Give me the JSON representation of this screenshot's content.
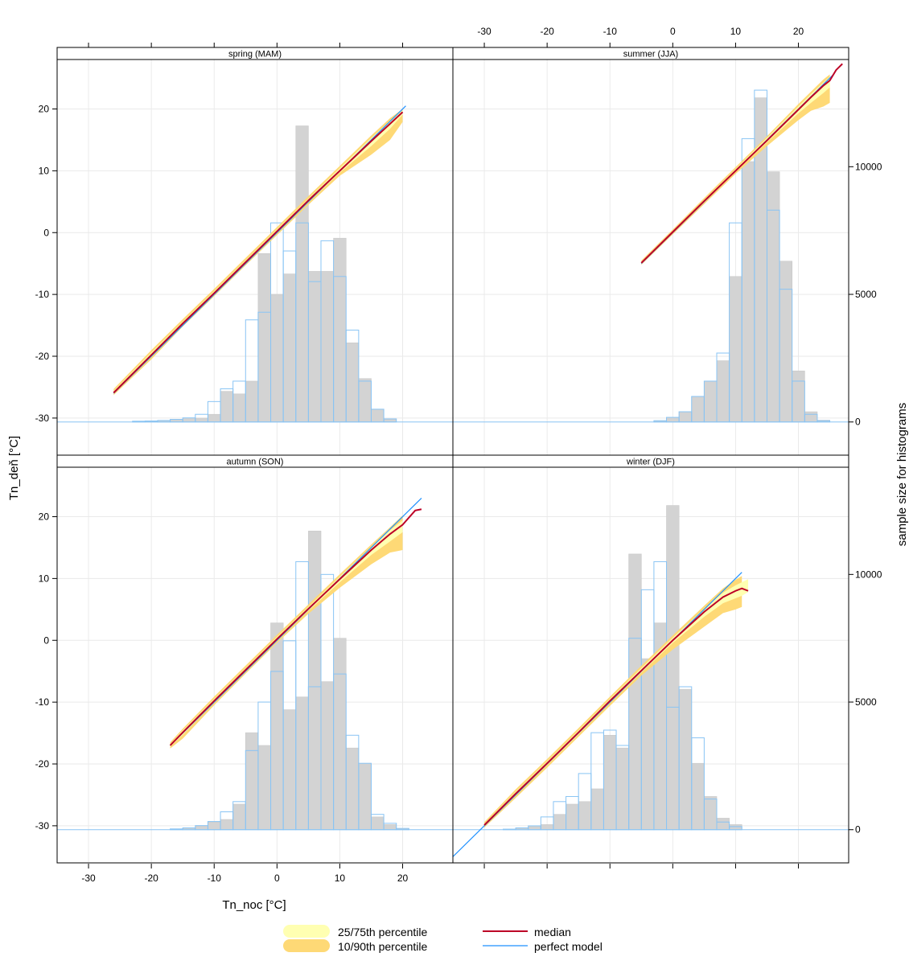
{
  "chart_data": {
    "type": "conditional-quantile",
    "xlabel": "Tn_noc [°C]",
    "ylabel": "Tn_deň [°C]",
    "y2label": "sample size for histograms",
    "xlim": [
      -35,
      28
    ],
    "ylim": [
      -36,
      28
    ],
    "countLim": [
      -1300,
      14200
    ],
    "xticks": [
      -30,
      -20,
      -10,
      0,
      10,
      20
    ],
    "yticks": [
      -30,
      -20,
      -10,
      0,
      10,
      20
    ],
    "countTicks": [
      0,
      5000,
      10000
    ],
    "binWidth": 2,
    "panels": [
      {
        "title": "spring (MAM)",
        "histObs": [
          {
            "x": -22,
            "n": 30
          },
          {
            "x": -20,
            "n": 40
          },
          {
            "x": -18,
            "n": 60
          },
          {
            "x": -16,
            "n": 100
          },
          {
            "x": -14,
            "n": 130
          },
          {
            "x": -12,
            "n": 150
          },
          {
            "x": -10,
            "n": 300
          },
          {
            "x": -8,
            "n": 1200
          },
          {
            "x": -6,
            "n": 1100
          },
          {
            "x": -4,
            "n": 1600
          },
          {
            "x": -2,
            "n": 6600
          },
          {
            "x": 0,
            "n": 5000
          },
          {
            "x": 2,
            "n": 5800
          },
          {
            "x": 4,
            "n": 11600
          },
          {
            "x": 6,
            "n": 5900
          },
          {
            "x": 8,
            "n": 5900
          },
          {
            "x": 10,
            "n": 7200
          },
          {
            "x": 12,
            "n": 3100
          },
          {
            "x": 14,
            "n": 1700
          },
          {
            "x": 16,
            "n": 500
          },
          {
            "x": 18,
            "n": 100
          }
        ],
        "histModel": [
          {
            "x": -22,
            "n": 30
          },
          {
            "x": -20,
            "n": 40
          },
          {
            "x": -18,
            "n": 60
          },
          {
            "x": -16,
            "n": 100
          },
          {
            "x": -14,
            "n": 160
          },
          {
            "x": -12,
            "n": 300
          },
          {
            "x": -10,
            "n": 800
          },
          {
            "x": -8,
            "n": 1300
          },
          {
            "x": -6,
            "n": 1600
          },
          {
            "x": -4,
            "n": 4000
          },
          {
            "x": -2,
            "n": 4300
          },
          {
            "x": 0,
            "n": 7800
          },
          {
            "x": 2,
            "n": 6700
          },
          {
            "x": 4,
            "n": 7800
          },
          {
            "x": 6,
            "n": 5500
          },
          {
            "x": 8,
            "n": 7100
          },
          {
            "x": 10,
            "n": 5700
          },
          {
            "x": 12,
            "n": 3600
          },
          {
            "x": 14,
            "n": 1600
          },
          {
            "x": 16,
            "n": 500
          },
          {
            "x": 18,
            "n": 120
          }
        ],
        "quantiles": [
          {
            "x": -26,
            "q10": -26.3,
            "q25": -26.0,
            "q50": -25.9,
            "q75": -25.6,
            "q90": -25.3
          },
          {
            "x": -20,
            "q10": -20.5,
            "q25": -20.1,
            "q50": -19.8,
            "q75": -19.4,
            "q90": -19.0
          },
          {
            "x": -15,
            "q10": -15.2,
            "q25": -14.9,
            "q50": -14.7,
            "q75": -14.4,
            "q90": -14.0
          },
          {
            "x": -10,
            "q10": -10.3,
            "q25": -9.9,
            "q50": -9.8,
            "q75": -9.5,
            "q90": -9.1
          },
          {
            "x": -5,
            "q10": -5.3,
            "q25": -4.9,
            "q50": -4.8,
            "q75": -4.5,
            "q90": -4.1
          },
          {
            "x": 0,
            "q10": -0.4,
            "q25": 0.0,
            "q50": 0.2,
            "q75": 0.5,
            "q90": 0.9
          },
          {
            "x": 5,
            "q10": 4.5,
            "q25": 4.9,
            "q50": 5.2,
            "q75": 5.5,
            "q90": 5.9
          },
          {
            "x": 10,
            "q10": 9.2,
            "q25": 9.7,
            "q50": 10.0,
            "q75": 10.4,
            "q90": 10.8
          },
          {
            "x": 15,
            "q10": 12.6,
            "q25": 14.0,
            "q50": 14.8,
            "q75": 15.3,
            "q90": 15.7
          },
          {
            "x": 18,
            "q10": 15.0,
            "q25": 16.8,
            "q50": 17.6,
            "q75": 18.1,
            "q90": 18.5
          },
          {
            "x": 20,
            "q10": 17.9,
            "q25": 19.1,
            "q50": 19.5,
            "q75": 19.8,
            "q90": 20.0
          }
        ],
        "perfect": [
          -26.0,
          20.5
        ]
      },
      {
        "title": "summer (JJA)",
        "histObs": [
          {
            "x": -2,
            "n": 50
          },
          {
            "x": 0,
            "n": 180
          },
          {
            "x": 2,
            "n": 400
          },
          {
            "x": 4,
            "n": 1000
          },
          {
            "x": 6,
            "n": 1600
          },
          {
            "x": 8,
            "n": 2400
          },
          {
            "x": 10,
            "n": 5700
          },
          {
            "x": 12,
            "n": 10200
          },
          {
            "x": 14,
            "n": 12700
          },
          {
            "x": 16,
            "n": 9800
          },
          {
            "x": 18,
            "n": 6300
          },
          {
            "x": 20,
            "n": 2000
          },
          {
            "x": 22,
            "n": 400
          },
          {
            "x": 24,
            "n": 70
          }
        ],
        "histModel": [
          {
            "x": -2,
            "n": 50
          },
          {
            "x": 0,
            "n": 180
          },
          {
            "x": 2,
            "n": 400
          },
          {
            "x": 4,
            "n": 1000
          },
          {
            "x": 6,
            "n": 1600
          },
          {
            "x": 8,
            "n": 2700
          },
          {
            "x": 10,
            "n": 7800
          },
          {
            "x": 12,
            "n": 11100
          },
          {
            "x": 14,
            "n": 13000
          },
          {
            "x": 16,
            "n": 8300
          },
          {
            "x": 18,
            "n": 5200
          },
          {
            "x": 20,
            "n": 1600
          },
          {
            "x": 22,
            "n": 300
          },
          {
            "x": 24,
            "n": 50
          }
        ],
        "quantiles": [
          {
            "x": -5,
            "q10": -5.2,
            "q25": -5.0,
            "q50": -4.9,
            "q75": -4.7,
            "q90": -4.5
          },
          {
            "x": 0,
            "q10": -0.3,
            "q25": 0.0,
            "q50": 0.1,
            "q75": 0.3,
            "q90": 0.5
          },
          {
            "x": 5,
            "q10": 4.6,
            "q25": 4.9,
            "q50": 5.1,
            "q75": 5.3,
            "q90": 5.6
          },
          {
            "x": 10,
            "q10": 9.5,
            "q25": 9.8,
            "q50": 10.0,
            "q75": 10.3,
            "q90": 10.6
          },
          {
            "x": 15,
            "q10": 14.0,
            "q25": 14.6,
            "q50": 14.9,
            "q75": 15.3,
            "q90": 15.6
          },
          {
            "x": 20,
            "q10": 18.2,
            "q25": 19.3,
            "q50": 19.9,
            "q75": 20.4,
            "q90": 20.8
          },
          {
            "x": 22,
            "q10": 19.7,
            "q25": 21.0,
            "q50": 21.9,
            "q75": 22.4,
            "q90": 22.8
          },
          {
            "x": 24,
            "q10": 20.4,
            "q25": 22.6,
            "q50": 23.8,
            "q75": 24.3,
            "q90": 24.8
          },
          {
            "x": 25,
            "q10": 21.0,
            "q25": 23.5,
            "q50": 24.6,
            "q75": 25.2,
            "q90": 25.6
          },
          {
            "x": 26,
            "q10": null,
            "q25": null,
            "q50": 26.3,
            "q75": null,
            "q90": null
          },
          {
            "x": 27,
            "q10": null,
            "q25": null,
            "q50": 27.3,
            "q75": null,
            "q90": null
          }
        ],
        "perfect": [
          -5.0,
          25.5
        ]
      },
      {
        "title": "autumn (SON)",
        "histObs": [
          {
            "x": -16,
            "n": 30
          },
          {
            "x": -14,
            "n": 60
          },
          {
            "x": -12,
            "n": 150
          },
          {
            "x": -10,
            "n": 300
          },
          {
            "x": -8,
            "n": 400
          },
          {
            "x": -6,
            "n": 1000
          },
          {
            "x": -4,
            "n": 3800
          },
          {
            "x": -2,
            "n": 3300
          },
          {
            "x": 0,
            "n": 8100
          },
          {
            "x": 2,
            "n": 4700
          },
          {
            "x": 4,
            "n": 5200
          },
          {
            "x": 6,
            "n": 11700
          },
          {
            "x": 8,
            "n": 5800
          },
          {
            "x": 10,
            "n": 7500
          },
          {
            "x": 12,
            "n": 3200
          },
          {
            "x": 14,
            "n": 2600
          },
          {
            "x": 16,
            "n": 500
          },
          {
            "x": 18,
            "n": 200
          },
          {
            "x": 20,
            "n": 40
          }
        ],
        "histModel": [
          {
            "x": -16,
            "n": 30
          },
          {
            "x": -14,
            "n": 70
          },
          {
            "x": -12,
            "n": 160
          },
          {
            "x": -10,
            "n": 320
          },
          {
            "x": -8,
            "n": 700
          },
          {
            "x": -6,
            "n": 1100
          },
          {
            "x": -4,
            "n": 3100
          },
          {
            "x": -2,
            "n": 5000
          },
          {
            "x": 0,
            "n": 6200
          },
          {
            "x": 2,
            "n": 7400
          },
          {
            "x": 4,
            "n": 10500
          },
          {
            "x": 6,
            "n": 5600
          },
          {
            "x": 8,
            "n": 10000
          },
          {
            "x": 10,
            "n": 6100
          },
          {
            "x": 12,
            "n": 3700
          },
          {
            "x": 14,
            "n": 2600
          },
          {
            "x": 16,
            "n": 600
          },
          {
            "x": 18,
            "n": 250
          },
          {
            "x": 20,
            "n": 50
          }
        ],
        "quantiles": [
          {
            "x": -17,
            "q10": -17.5,
            "q25": -17.2,
            "q50": -17.0,
            "q75": -16.8,
            "q90": -16.5
          },
          {
            "x": -15,
            "q10": -15.9,
            "q25": -15.3,
            "q50": -14.9,
            "q75": -14.6,
            "q90": -14.3
          },
          {
            "x": -10,
            "q10": -10.5,
            "q25": -10.0,
            "q50": -9.8,
            "q75": -9.5,
            "q90": -9.1
          },
          {
            "x": -5,
            "q10": -5.4,
            "q25": -5.0,
            "q50": -4.8,
            "q75": -4.5,
            "q90": -4.1
          },
          {
            "x": 0,
            "q10": -0.4,
            "q25": 0.0,
            "q50": 0.2,
            "q75": 0.5,
            "q90": 0.9
          },
          {
            "x": 5,
            "q10": 4.3,
            "q25": 4.8,
            "q50": 5.1,
            "q75": 5.4,
            "q90": 5.8
          },
          {
            "x": 10,
            "q10": 8.5,
            "q25": 9.4,
            "q50": 9.9,
            "q75": 10.3,
            "q90": 10.7
          },
          {
            "x": 15,
            "q10": 12.3,
            "q25": 13.8,
            "q50": 14.6,
            "q75": 15.1,
            "q90": 15.5
          },
          {
            "x": 18,
            "q10": 14.2,
            "q25": 16.0,
            "q50": 17.2,
            "q75": 17.8,
            "q90": 18.3
          },
          {
            "x": 20,
            "q10": 14.6,
            "q25": 17.5,
            "q50": 18.7,
            "q75": 19.4,
            "q90": 20.2
          },
          {
            "x": 22,
            "q10": null,
            "q25": null,
            "q50": 21.0,
            "q75": null,
            "q90": null
          },
          {
            "x": 23,
            "q10": null,
            "q25": null,
            "q50": 21.2,
            "q75": null,
            "q90": null
          }
        ],
        "perfect": [
          -17.0,
          23.0
        ]
      },
      {
        "title": "winter (DJF)",
        "histObs": [
          {
            "x": -26,
            "n": 20
          },
          {
            "x": -24,
            "n": 60
          },
          {
            "x": -22,
            "n": 120
          },
          {
            "x": -20,
            "n": 200
          },
          {
            "x": -18,
            "n": 600
          },
          {
            "x": -16,
            "n": 1000
          },
          {
            "x": -14,
            "n": 1100
          },
          {
            "x": -12,
            "n": 1600
          },
          {
            "x": -10,
            "n": 3700
          },
          {
            "x": -8,
            "n": 3200
          },
          {
            "x": -6,
            "n": 10800
          },
          {
            "x": -4,
            "n": 6700
          },
          {
            "x": -2,
            "n": 8100
          },
          {
            "x": 0,
            "n": 12700
          },
          {
            "x": 2,
            "n": 5500
          },
          {
            "x": 4,
            "n": 2600
          },
          {
            "x": 6,
            "n": 1300
          },
          {
            "x": 8,
            "n": 450
          },
          {
            "x": 10,
            "n": 200
          }
        ],
        "histModel": [
          {
            "x": -26,
            "n": 20
          },
          {
            "x": -24,
            "n": 70
          },
          {
            "x": -22,
            "n": 150
          },
          {
            "x": -20,
            "n": 500
          },
          {
            "x": -18,
            "n": 1100
          },
          {
            "x": -16,
            "n": 1300
          },
          {
            "x": -14,
            "n": 2200
          },
          {
            "x": -12,
            "n": 3800
          },
          {
            "x": -10,
            "n": 3900
          },
          {
            "x": -8,
            "n": 3300
          },
          {
            "x": -6,
            "n": 7500
          },
          {
            "x": -4,
            "n": 9400
          },
          {
            "x": -2,
            "n": 10500
          },
          {
            "x": 0,
            "n": 4800
          },
          {
            "x": 2,
            "n": 5600
          },
          {
            "x": 4,
            "n": 3600
          },
          {
            "x": 6,
            "n": 1200
          },
          {
            "x": 8,
            "n": 300
          },
          {
            "x": 10,
            "n": 120
          }
        ],
        "quantiles": [
          {
            "x": -30,
            "q10": -30.3,
            "q25": -30.0,
            "q50": -29.9,
            "q75": -29.7,
            "q90": -29.4
          },
          {
            "x": -25,
            "q10": -25.5,
            "q25": -25.0,
            "q50": -24.8,
            "q75": -24.5,
            "q90": -24.1
          },
          {
            "x": -20,
            "q10": -20.6,
            "q25": -20.2,
            "q50": -19.9,
            "q75": -19.6,
            "q90": -19.2
          },
          {
            "x": -15,
            "q10": -15.6,
            "q25": -15.2,
            "q50": -14.9,
            "q75": -14.6,
            "q90": -14.2
          },
          {
            "x": -10,
            "q10": -10.6,
            "q25": -10.1,
            "q50": -9.8,
            "q75": -9.5,
            "q90": -9.1
          },
          {
            "x": -5,
            "q10": -5.7,
            "q25": -5.2,
            "q50": -4.9,
            "q75": -4.5,
            "q90": -4.1
          },
          {
            "x": 0,
            "q10": -1.5,
            "q25": -0.4,
            "q50": 0.0,
            "q75": 0.4,
            "q90": 0.8
          },
          {
            "x": 5,
            "q10": 2.2,
            "q25": 3.8,
            "q50": 4.6,
            "q75": 5.1,
            "q90": 5.6
          },
          {
            "x": 8,
            "q10": 4.4,
            "q25": 6.0,
            "q50": 7.0,
            "q75": 7.7,
            "q90": 8.4
          },
          {
            "x": 10,
            "q10": 5.0,
            "q25": 6.8,
            "q50": 8.0,
            "q75": 8.9,
            "q90": 9.8
          },
          {
            "x": 11,
            "q10": 5.4,
            "q25": 7.2,
            "q50": 8.4,
            "q75": 9.4,
            "q90": 10.4
          },
          {
            "x": 12,
            "q10": null,
            "q25": 7.8,
            "q50": 8.0,
            "q75": 9.9,
            "q90": null
          }
        ],
        "perfect": [
          -36.0,
          11.0
        ]
      }
    ],
    "legend": {
      "q25_75": "25/75th percentile",
      "q10_90": "10/90th percentile",
      "median": "median",
      "perfect": "perfect model"
    },
    "colors": {
      "band_25_75": "#FFFFB2",
      "band_10_90": "#FED976",
      "median": "#BD0026",
      "perfect": "#1E90FF",
      "histObs": "#D3D3D3",
      "histModel": "#89C4F4",
      "grid": "#EAEAEA",
      "strip": "#FFFFFF"
    }
  }
}
